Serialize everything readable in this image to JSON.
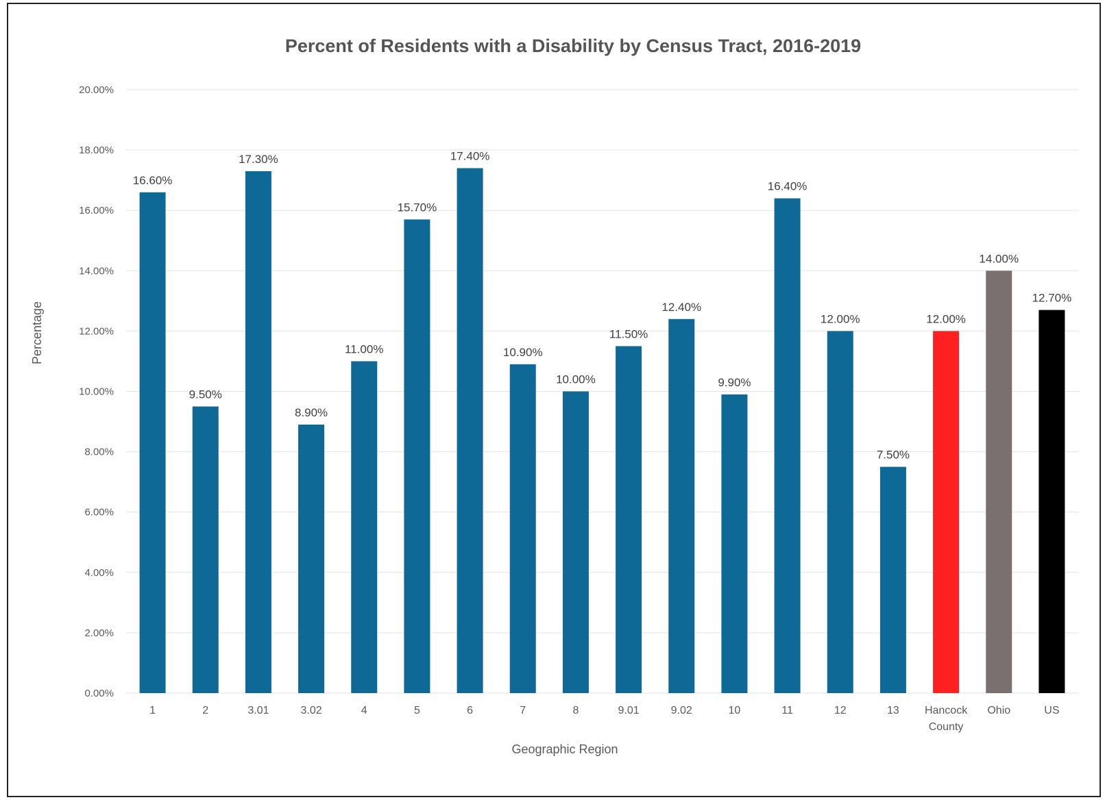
{
  "chart_data": {
    "type": "bar",
    "title": "Percent of Residents with a Disability by Census Tract, 2016-2019",
    "xlabel": "Geographic Region",
    "ylabel": "Percentage",
    "ylim": [
      0,
      20
    ],
    "y_ticks": [
      "0.00%",
      "2.00%",
      "4.00%",
      "6.00%",
      "8.00%",
      "10.00%",
      "12.00%",
      "14.00%",
      "16.00%",
      "18.00%",
      "20.00%"
    ],
    "grid": true,
    "legend": "none",
    "categories": [
      "1",
      "2",
      "3.01",
      "3.02",
      "4",
      "5",
      "6",
      "7",
      "8",
      "9.01",
      "9.02",
      "10",
      "11",
      "12",
      "13",
      "Hancock County",
      "Ohio",
      "US"
    ],
    "values": [
      16.6,
      9.5,
      17.3,
      8.9,
      11.0,
      15.7,
      17.4,
      10.9,
      10.0,
      11.5,
      12.4,
      9.9,
      16.4,
      12.0,
      7.5,
      12.0,
      14.0,
      12.7
    ],
    "data_labels": [
      "16.60%",
      "9.50%",
      "17.30%",
      "8.90%",
      "11.00%",
      "15.70%",
      "17.40%",
      "10.90%",
      "10.00%",
      "11.50%",
      "12.40%",
      "9.90%",
      "16.40%",
      "12.00%",
      "7.50%",
      "12.00%",
      "14.00%",
      "12.70%"
    ],
    "colors": [
      "#0f6996",
      "#0f6996",
      "#0f6996",
      "#0f6996",
      "#0f6996",
      "#0f6996",
      "#0f6996",
      "#0f6996",
      "#0f6996",
      "#0f6996",
      "#0f6996",
      "#0f6996",
      "#0f6996",
      "#0f6996",
      "#0f6996",
      "#ff2020",
      "#7a7070",
      "#000000"
    ]
  }
}
